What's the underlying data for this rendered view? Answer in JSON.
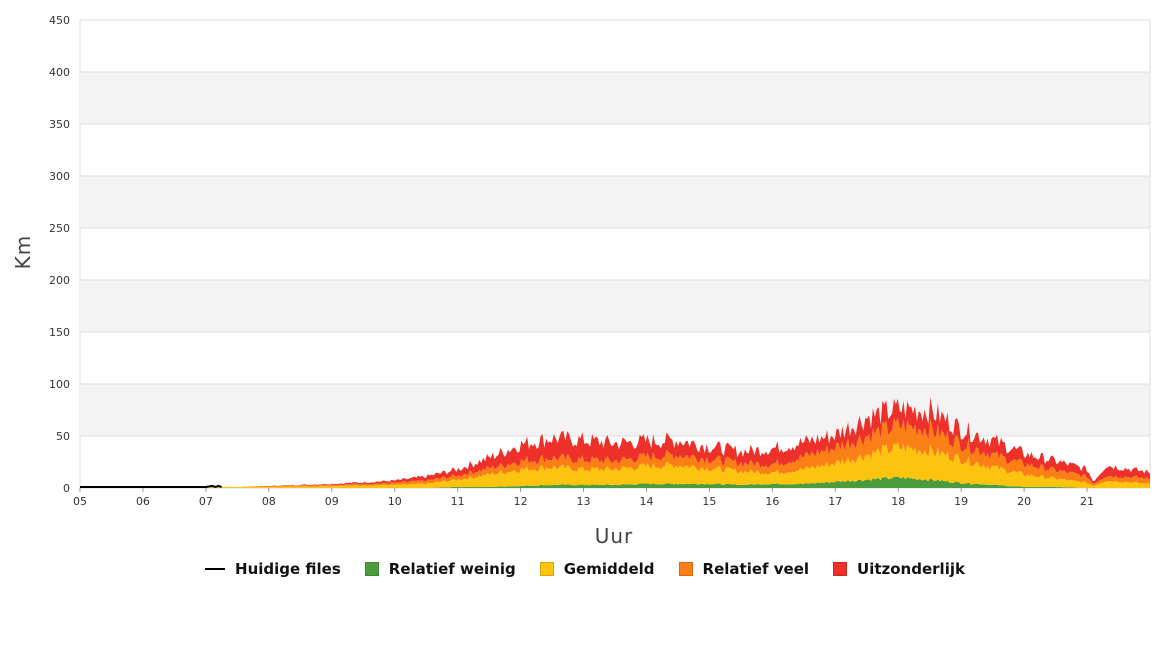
{
  "colors": {
    "relatief_weinig": "#4a9c3d",
    "gemiddeld": "#fcc30f",
    "relatief_veel": "#fa7f15",
    "uitzonderlijk": "#ee302b",
    "huidige_files": "#000000",
    "band": "#f3f3f3",
    "grid": "#dddddd"
  },
  "legend": [
    {
      "key": "huidige_files",
      "label": "Huidige files",
      "kind": "line"
    },
    {
      "key": "relatief_weinig",
      "label": "Relatief weinig",
      "kind": "box"
    },
    {
      "key": "gemiddeld",
      "label": "Gemiddeld",
      "kind": "box"
    },
    {
      "key": "relatief_veel",
      "label": "Relatief veel",
      "kind": "box"
    },
    {
      "key": "uitzonderlijk",
      "label": "Uitzonderlijk",
      "kind": "box"
    }
  ],
  "chart_data": {
    "type": "area",
    "stacked": true,
    "xlabel": "Uur",
    "ylabel": "Km",
    "x_tick_labels": [
      "05",
      "06",
      "07",
      "08",
      "09",
      "10",
      "11",
      "12",
      "13",
      "14",
      "15",
      "16",
      "17",
      "18",
      "19",
      "20",
      "21"
    ],
    "xlim": [
      5,
      22
    ],
    "ylim": [
      0,
      450
    ],
    "y_ticks": [
      0,
      50,
      100,
      150,
      200,
      250,
      300,
      350,
      400,
      450
    ],
    "grid": true,
    "legend_position": "bottom",
    "x": [
      5,
      6,
      7,
      7.5,
      8,
      9,
      10,
      10.5,
      11,
      11.5,
      12,
      12.5,
      13,
      13.5,
      14,
      14.5,
      15,
      15.5,
      16,
      16.5,
      17,
      17.5,
      18,
      18.5,
      19,
      19.5,
      20,
      20.5,
      21,
      21.1,
      21.3,
      21.6,
      22
    ],
    "series": [
      {
        "name": "Relatief weinig",
        "key": "relatief_weinig",
        "values": [
          0,
          0,
          0,
          0,
          0,
          0,
          0,
          0,
          1,
          1,
          2,
          3,
          3,
          3,
          4,
          4,
          4,
          3,
          4,
          4,
          6,
          8,
          10,
          8,
          5,
          3,
          1,
          1,
          0,
          0,
          0,
          0,
          0
        ]
      },
      {
        "name": "Gemiddeld",
        "key": "gemiddeld",
        "values": [
          1,
          1,
          1,
          1,
          1,
          2,
          3,
          4,
          7,
          12,
          16,
          17,
          15,
          15,
          17,
          18,
          15,
          13,
          11,
          14,
          18,
          24,
          29,
          28,
          23,
          17,
          12,
          8,
          5,
          2,
          7,
          6,
          4
        ]
      },
      {
        "name": "Relatief veel",
        "key": "relatief_veel",
        "values": [
          0,
          0,
          0,
          0,
          1,
          1,
          2,
          3,
          4,
          6,
          8,
          9,
          9,
          8,
          9,
          10,
          9,
          8,
          8,
          12,
          15,
          18,
          21,
          21,
          15,
          12,
          10,
          8,
          6,
          2,
          5,
          5,
          5
        ]
      },
      {
        "name": "Uitzonderlijk",
        "key": "uitzonderlijk",
        "values": [
          0,
          0,
          0,
          0,
          0,
          1,
          2,
          4,
          6,
          10,
          16,
          19,
          19,
          17,
          15,
          14,
          12,
          11,
          15,
          14,
          12,
          18,
          16,
          18,
          14,
          14,
          10,
          9,
          7,
          2,
          10,
          8,
          6
        ]
      }
    ],
    "current": {
      "name": "Huidige files",
      "x": [
        5,
        5.5,
        6,
        6.5,
        7,
        7.1,
        7.15,
        7.2,
        7.25
      ],
      "values": [
        1,
        1,
        1,
        1,
        1,
        2,
        1,
        2,
        1
      ]
    }
  }
}
